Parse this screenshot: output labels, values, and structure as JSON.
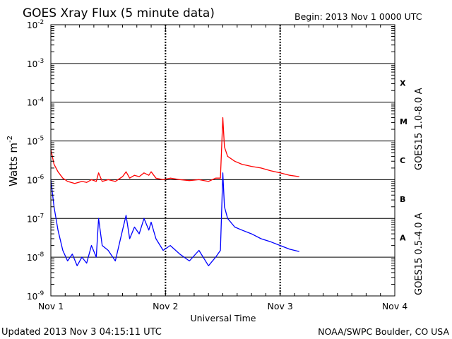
{
  "header": {
    "title": "GOES Xray Flux (5 minute data)",
    "begin": "Begin:  2013 Nov 1 0000 UTC"
  },
  "footer": {
    "updated": "Updated 2013 Nov  3 04:15:11 UTC",
    "source": "NOAA/SWPC Boulder, CO USA"
  },
  "colors": {
    "long_channel": "#ff0000",
    "short_channel": "#0000ff",
    "axis": "#000000"
  },
  "chart_data": {
    "type": "line",
    "title": "GOES Xray Flux (5 minute data)",
    "xlabel": "Universal Time",
    "ylabel": "Watts m",
    "ylabel_exponent": "-2",
    "yscale": "log",
    "ylim": [
      1e-09,
      0.01
    ],
    "xlim": [
      "2013-11-01 00:00",
      "2013-11-04 00:00"
    ],
    "x_ticks": [
      "Nov 1",
      "Nov 2",
      "Nov 3",
      "Nov 4"
    ],
    "y_ticks": [
      {
        "base": "10",
        "exp": "-9",
        "value": 1e-09
      },
      {
        "base": "10",
        "exp": "-8",
        "value": 1e-08
      },
      {
        "base": "10",
        "exp": "-7",
        "value": 1e-07
      },
      {
        "base": "10",
        "exp": "-6",
        "value": 1e-06
      },
      {
        "base": "10",
        "exp": "-5",
        "value": 1e-05
      },
      {
        "base": "10",
        "exp": "-4",
        "value": 0.0001
      },
      {
        "base": "10",
        "exp": "-3",
        "value": 0.001
      },
      {
        "base": "10",
        "exp": "-2",
        "value": 0.01
      }
    ],
    "flare_classes": [
      {
        "label": "A",
        "value": 3.16e-08
      },
      {
        "label": "B",
        "value": 3.16e-07
      },
      {
        "label": "C",
        "value": 3.16e-06
      },
      {
        "label": "M",
        "value": 3.16e-05
      },
      {
        "label": "X",
        "value": 0.000316
      }
    ],
    "series": [
      {
        "name": "GOES15 1.0-8.0 A",
        "color": "#ff0000",
        "points": [
          [
            "2013-11-01 00:00",
            6e-06
          ],
          [
            "2013-11-01 00:40",
            2.5e-06
          ],
          [
            "2013-11-01 01:30",
            1.6e-06
          ],
          [
            "2013-11-01 02:30",
            1.1e-06
          ],
          [
            "2013-11-01 03:30",
            9e-07
          ],
          [
            "2013-11-01 05:00",
            8e-07
          ],
          [
            "2013-11-01 06:30",
            9e-07
          ],
          [
            "2013-11-01 07:30",
            8.5e-07
          ],
          [
            "2013-11-01 08:30",
            1e-06
          ],
          [
            "2013-11-01 09:30",
            9e-07
          ],
          [
            "2013-11-01 10:00",
            1.5e-06
          ],
          [
            "2013-11-01 10:45",
            9e-07
          ],
          [
            "2013-11-01 12:00",
            1e-06
          ],
          [
            "2013-11-01 13:30",
            9e-07
          ],
          [
            "2013-11-01 15:00",
            1.2e-06
          ],
          [
            "2013-11-01 15:45",
            1.6e-06
          ],
          [
            "2013-11-01 16:30",
            1.1e-06
          ],
          [
            "2013-11-01 17:30",
            1.3e-06
          ],
          [
            "2013-11-01 18:30",
            1.2e-06
          ],
          [
            "2013-11-01 19:30",
            1.5e-06
          ],
          [
            "2013-11-01 20:30",
            1.3e-06
          ],
          [
            "2013-11-01 21:00",
            1.6e-06
          ],
          [
            "2013-11-01 22:00",
            1.1e-06
          ],
          [
            "2013-11-01 23:30",
            1e-06
          ],
          [
            "2013-11-02 01:00",
            1.1e-06
          ],
          [
            "2013-11-02 03:00",
            1e-06
          ],
          [
            "2013-11-02 05:00",
            9.5e-07
          ],
          [
            "2013-11-02 07:00",
            1e-06
          ],
          [
            "2013-11-02 09:00",
            9e-07
          ],
          [
            "2013-11-02 10:30",
            1.1e-06
          ],
          [
            "2013-11-02 11:30",
            1.1e-06
          ],
          [
            "2013-11-02 12:00",
            4e-05
          ],
          [
            "2013-11-02 12:20",
            7e-06
          ],
          [
            "2013-11-02 13:00",
            4e-06
          ],
          [
            "2013-11-02 14:30",
            3e-06
          ],
          [
            "2013-11-02 16:00",
            2.5e-06
          ],
          [
            "2013-11-02 18:00",
            2.2e-06
          ],
          [
            "2013-11-02 20:00",
            2e-06
          ],
          [
            "2013-11-02 22:00",
            1.7e-06
          ],
          [
            "2013-11-03 00:00",
            1.5e-06
          ],
          [
            "2013-11-03 02:00",
            1.3e-06
          ],
          [
            "2013-11-03 04:00",
            1.2e-06
          ]
        ]
      },
      {
        "name": "GOES15 0.5-4.0 A",
        "color": "#0000ff",
        "points": [
          [
            "2013-11-01 00:00",
            1e-06
          ],
          [
            "2013-11-01 00:40",
            2e-07
          ],
          [
            "2013-11-01 01:30",
            5e-08
          ],
          [
            "2013-11-01 02:30",
            1.5e-08
          ],
          [
            "2013-11-01 03:30",
            8e-09
          ],
          [
            "2013-11-01 04:30",
            1.2e-08
          ],
          [
            "2013-11-01 05:30",
            6e-09
          ],
          [
            "2013-11-01 06:30",
            1e-08
          ],
          [
            "2013-11-01 07:30",
            7e-09
          ],
          [
            "2013-11-01 08:30",
            2e-08
          ],
          [
            "2013-11-01 09:30",
            1e-08
          ],
          [
            "2013-11-01 10:00",
            1e-07
          ],
          [
            "2013-11-01 10:45",
            2e-08
          ],
          [
            "2013-11-01 12:00",
            1.5e-08
          ],
          [
            "2013-11-01 13:30",
            8e-09
          ],
          [
            "2013-11-01 15:00",
            5e-08
          ],
          [
            "2013-11-01 15:45",
            1.2e-07
          ],
          [
            "2013-11-01 16:30",
            3e-08
          ],
          [
            "2013-11-01 17:30",
            6e-08
          ],
          [
            "2013-11-01 18:30",
            4e-08
          ],
          [
            "2013-11-01 19:30",
            1e-07
          ],
          [
            "2013-11-01 20:30",
            5e-08
          ],
          [
            "2013-11-01 21:00",
            8e-08
          ],
          [
            "2013-11-01 22:00",
            3e-08
          ],
          [
            "2013-11-01 23:30",
            1.5e-08
          ],
          [
            "2013-11-02 01:00",
            2e-08
          ],
          [
            "2013-11-02 03:00",
            1.2e-08
          ],
          [
            "2013-11-02 05:00",
            8e-09
          ],
          [
            "2013-11-02 07:00",
            1.5e-08
          ],
          [
            "2013-11-02 09:00",
            6e-09
          ],
          [
            "2013-11-02 10:30",
            1e-08
          ],
          [
            "2013-11-02 11:30",
            1.5e-08
          ],
          [
            "2013-11-02 12:00",
            1.5e-06
          ],
          [
            "2013-11-02 12:20",
            2e-07
          ],
          [
            "2013-11-02 13:00",
            1e-07
          ],
          [
            "2013-11-02 14:30",
            6e-08
          ],
          [
            "2013-11-02 16:00",
            5e-08
          ],
          [
            "2013-11-02 18:00",
            4e-08
          ],
          [
            "2013-11-02 20:00",
            3e-08
          ],
          [
            "2013-11-02 22:00",
            2.5e-08
          ],
          [
            "2013-11-03 00:00",
            2e-08
          ],
          [
            "2013-11-03 02:00",
            1.6e-08
          ],
          [
            "2013-11-03 04:00",
            1.4e-08
          ]
        ]
      }
    ]
  }
}
